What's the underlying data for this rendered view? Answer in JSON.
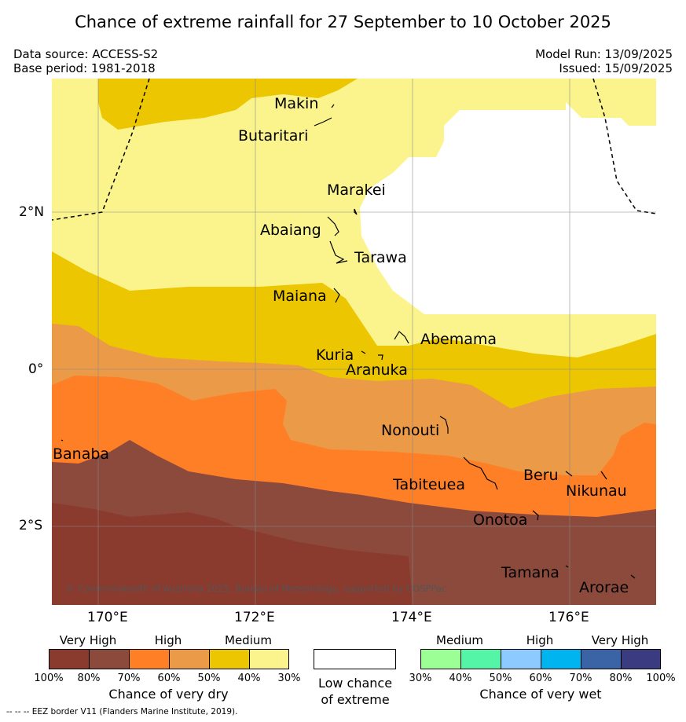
{
  "title": "Chance of extreme rainfall for 27 September to 10 October 2025",
  "meta": {
    "data_source": "Data source: ACCESS-S2",
    "base_period": "Base period: 1981-2018",
    "model_run": "Model Run: 13/09/2025",
    "issued": "Issued: 15/09/2025"
  },
  "axes": {
    "lon_labels": [
      "170°E",
      "172°E",
      "174°E",
      "176°E"
    ],
    "lat_labels": [
      "2°N",
      "0°",
      "2°S"
    ]
  },
  "places": {
    "makin": "Makin",
    "butaritari": "Butaritari",
    "marakei": "Marakei",
    "abaiang": "Abaiang",
    "tarawa": "Tarawa",
    "maiana": "Maiana",
    "abemama": "Abemama",
    "kuria": "Kuria",
    "aranuka": "Aranuka",
    "nonouti": "Nonouti",
    "banaba": "Banaba",
    "beru": "Beru",
    "tabiteuea": "Tabiteuea",
    "nikunau": "Nikunau",
    "onotoa": "Onotoa",
    "tamana": "Tamana",
    "arorae": "Arorae"
  },
  "copyright": "© Commonwealth of Australia 2025, Bureau of Meteorology, supported by COSPPac",
  "legend": {
    "dry": {
      "headers": [
        "Very High",
        "High",
        "Medium"
      ],
      "ticks": [
        "100%",
        "80%",
        "70%",
        "60%",
        "50%",
        "40%",
        "30%"
      ],
      "caption": "Chance of very dry",
      "colors": [
        "#8b3a2e",
        "#8b4a3c",
        "#ff7f27",
        "#eb9a48",
        "#ecc600",
        "#fbf48c"
      ]
    },
    "low": {
      "caption_line1": "Low chance",
      "caption_line2": "of extreme"
    },
    "wet": {
      "headers": [
        "Medium",
        "High",
        "Very High"
      ],
      "ticks": [
        "30%",
        "40%",
        "50%",
        "60%",
        "70%",
        "80%",
        "100%"
      ],
      "caption": "Chance of very wet",
      "colors": [
        "#9cff96",
        "#55f5a8",
        "#8ccaff",
        "#00b4ef",
        "#3a64a6",
        "#3b3b82"
      ]
    }
  },
  "footnote": "-- -- -- EEZ border V11 (Flanders Marine Institute, 2019).",
  "colors": {
    "very_high_dry": "#8b3a2e",
    "high80_dry": "#8b4a3c",
    "high70_dry": "#ff7f27",
    "medium60_dry": "#eb9a48",
    "medium50_dry": "#ecc600",
    "low40_dry": "#fbf48c"
  }
}
